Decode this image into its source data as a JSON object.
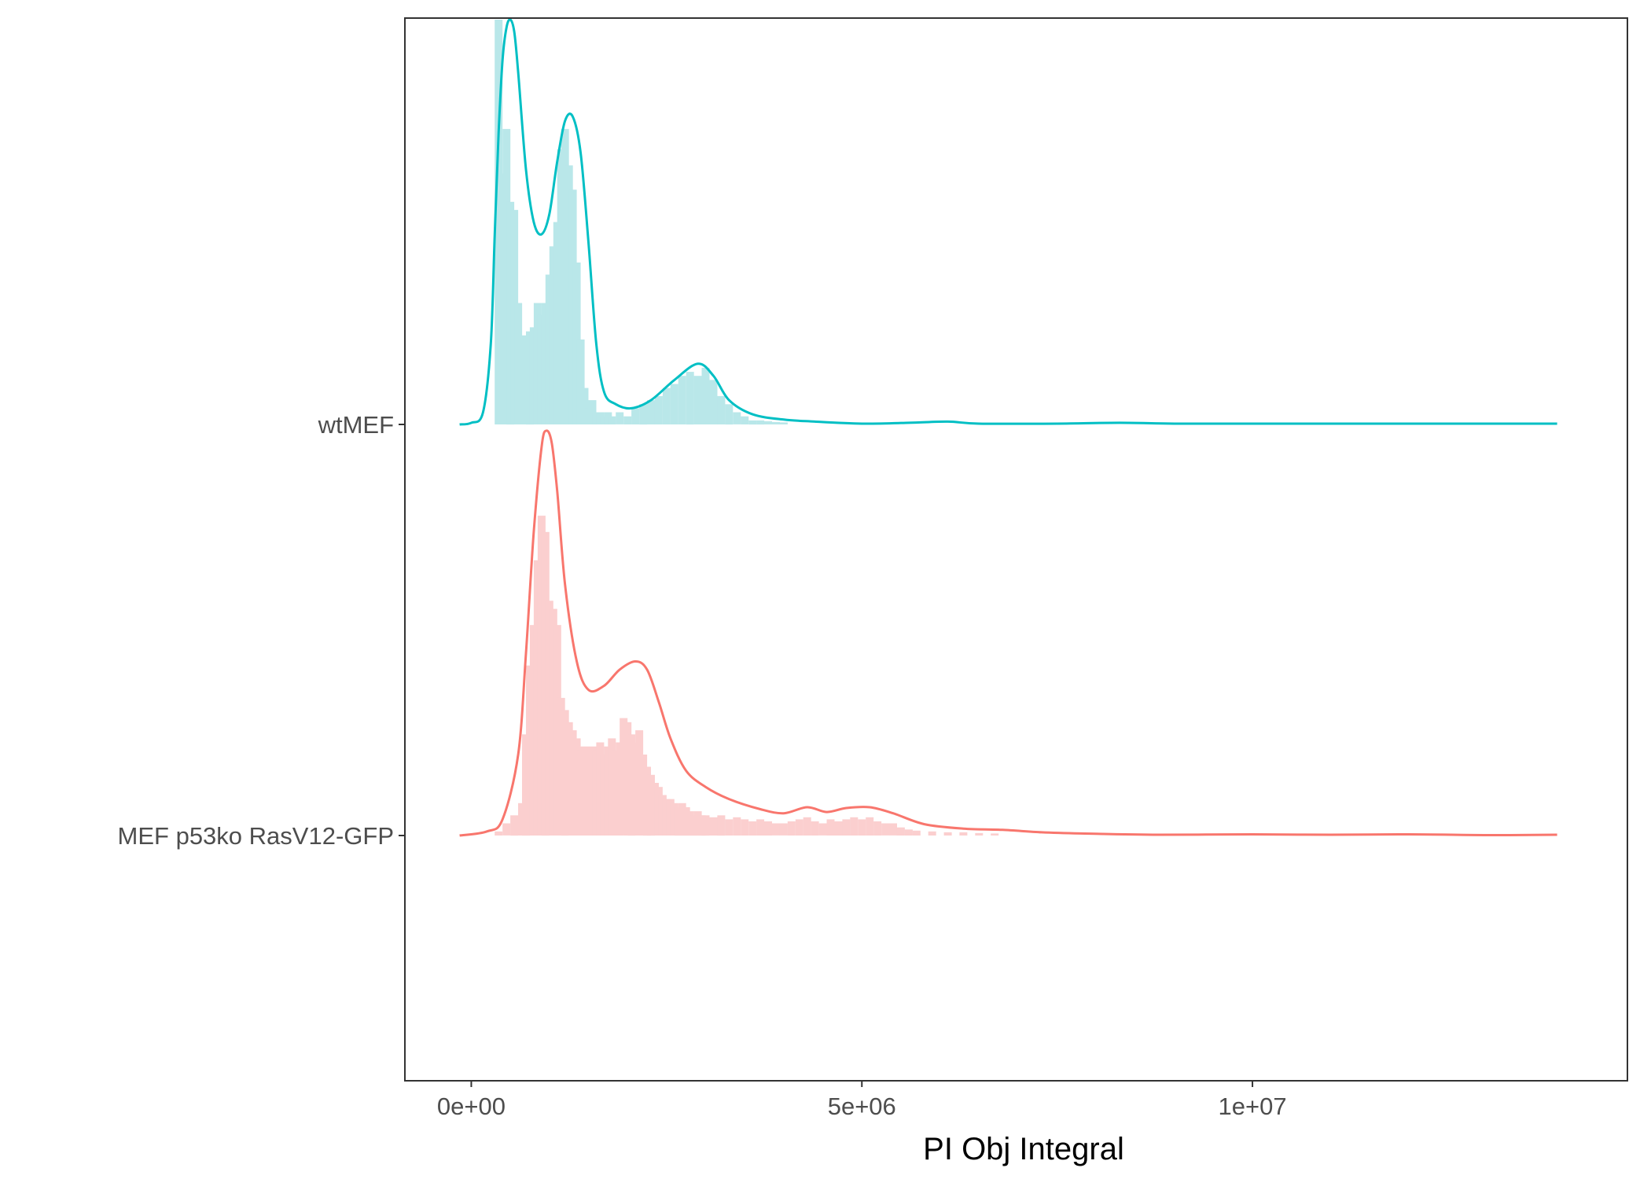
{
  "chart_data": {
    "type": "ridgeline",
    "title": "",
    "xlabel": "PI Obj Integral",
    "ylabel": "",
    "xlim": [
      -850000,
      14800000
    ],
    "x_ticks": [
      {
        "value": 0,
        "label": "0e+00"
      },
      {
        "value": 5000000,
        "label": "5e+06"
      },
      {
        "value": 10000000,
        "label": "1e+07"
      }
    ],
    "grid": false,
    "legend": "none",
    "series": [
      {
        "name": "MEF p53ko RasV12-GFP",
        "color": "#F8766D",
        "fill": "#FBCFCF",
        "density": [
          [
            -150000,
            0.0
          ],
          [
            200000,
            0.01
          ],
          [
            400000,
            0.04
          ],
          [
            600000,
            0.2
          ],
          [
            700000,
            0.45
          ],
          [
            800000,
            0.75
          ],
          [
            900000,
            0.96
          ],
          [
            960000,
            1.0
          ],
          [
            1030000,
            0.97
          ],
          [
            1100000,
            0.85
          ],
          [
            1200000,
            0.62
          ],
          [
            1350000,
            0.43
          ],
          [
            1500000,
            0.36
          ],
          [
            1700000,
            0.37
          ],
          [
            1900000,
            0.41
          ],
          [
            2100000,
            0.43
          ],
          [
            2250000,
            0.41
          ],
          [
            2400000,
            0.33
          ],
          [
            2550000,
            0.24
          ],
          [
            2750000,
            0.16
          ],
          [
            3000000,
            0.12
          ],
          [
            3300000,
            0.09
          ],
          [
            3700000,
            0.065
          ],
          [
            4000000,
            0.055
          ],
          [
            4300000,
            0.07
          ],
          [
            4550000,
            0.058
          ],
          [
            4800000,
            0.068
          ],
          [
            5100000,
            0.07
          ],
          [
            5400000,
            0.055
          ],
          [
            5800000,
            0.028
          ],
          [
            6300000,
            0.017
          ],
          [
            6800000,
            0.014
          ],
          [
            7300000,
            0.008
          ],
          [
            7800000,
            0.005
          ],
          [
            8800000,
            0.002
          ],
          [
            10000000,
            0.003
          ],
          [
            11000000,
            0.002
          ],
          [
            12000000,
            0.003
          ],
          [
            13000000,
            0.001
          ],
          [
            13900000,
            0.002
          ]
        ],
        "histogram": [
          [
            350000,
            0.01
          ],
          [
            450000,
            0.03
          ],
          [
            550000,
            0.05
          ],
          [
            650000,
            0.08
          ],
          [
            700000,
            0.25
          ],
          [
            750000,
            0.42
          ],
          [
            800000,
            0.52
          ],
          [
            850000,
            0.68
          ],
          [
            900000,
            0.79
          ],
          [
            950000,
            0.75
          ],
          [
            1000000,
            0.58
          ],
          [
            1050000,
            0.56
          ],
          [
            1100000,
            0.52
          ],
          [
            1150000,
            0.34
          ],
          [
            1200000,
            0.31
          ],
          [
            1250000,
            0.28
          ],
          [
            1300000,
            0.26
          ],
          [
            1350000,
            0.24
          ],
          [
            1400000,
            0.21
          ],
          [
            1450000,
            0.22
          ],
          [
            1500000,
            0.2
          ],
          [
            1550000,
            0.22
          ],
          [
            1600000,
            0.21
          ],
          [
            1650000,
            0.23
          ],
          [
            1700000,
            0.2
          ],
          [
            1750000,
            0.22
          ],
          [
            1800000,
            0.24
          ],
          [
            1850000,
            0.21
          ],
          [
            1900000,
            0.23
          ],
          [
            1950000,
            0.29
          ],
          [
            2000000,
            0.28
          ],
          [
            2050000,
            0.25
          ],
          [
            2100000,
            0.23
          ],
          [
            2150000,
            0.26
          ],
          [
            2200000,
            0.2
          ],
          [
            2250000,
            0.17
          ],
          [
            2300000,
            0.15
          ],
          [
            2350000,
            0.13
          ],
          [
            2400000,
            0.12
          ],
          [
            2450000,
            0.1
          ],
          [
            2500000,
            0.09
          ],
          [
            2550000,
            0.09
          ],
          [
            2600000,
            0.08
          ],
          [
            2650000,
            0.07
          ],
          [
            2700000,
            0.08
          ],
          [
            2750000,
            0.07
          ],
          [
            2800000,
            0.06
          ],
          [
            2850000,
            0.05
          ],
          [
            2900000,
            0.06
          ],
          [
            2950000,
            0.05
          ],
          [
            3000000,
            0.05
          ],
          [
            3100000,
            0.045
          ],
          [
            3200000,
            0.05
          ],
          [
            3300000,
            0.04
          ],
          [
            3400000,
            0.045
          ],
          [
            3500000,
            0.04
          ],
          [
            3600000,
            0.035
          ],
          [
            3700000,
            0.04
          ],
          [
            3800000,
            0.035
          ],
          [
            3900000,
            0.03
          ],
          [
            4000000,
            0.03
          ],
          [
            4100000,
            0.035
          ],
          [
            4200000,
            0.04
          ],
          [
            4300000,
            0.045
          ],
          [
            4400000,
            0.035
          ],
          [
            4500000,
            0.03
          ],
          [
            4600000,
            0.04
          ],
          [
            4700000,
            0.035
          ],
          [
            4800000,
            0.04
          ],
          [
            4900000,
            0.045
          ],
          [
            5000000,
            0.04
          ],
          [
            5100000,
            0.045
          ],
          [
            5200000,
            0.035
          ],
          [
            5300000,
            0.03
          ],
          [
            5400000,
            0.03
          ],
          [
            5500000,
            0.02
          ],
          [
            5600000,
            0.015
          ],
          [
            5700000,
            0.012
          ],
          [
            5900000,
            0.01
          ],
          [
            6100000,
            0.008
          ],
          [
            6300000,
            0.008
          ],
          [
            6500000,
            0.006
          ],
          [
            6700000,
            0.005
          ]
        ]
      },
      {
        "name": "wtMEF",
        "color": "#00BFC4",
        "fill": "#B9E7E9",
        "density": [
          [
            -150000,
            0.0
          ],
          [
            0,
            0.004
          ],
          [
            150000,
            0.03
          ],
          [
            250000,
            0.2
          ],
          [
            300000,
            0.47
          ],
          [
            350000,
            0.72
          ],
          [
            400000,
            0.9
          ],
          [
            450000,
            0.98
          ],
          [
            500000,
            1.0
          ],
          [
            550000,
            0.97
          ],
          [
            600000,
            0.87
          ],
          [
            700000,
            0.63
          ],
          [
            800000,
            0.5
          ],
          [
            900000,
            0.47
          ],
          [
            1000000,
            0.52
          ],
          [
            1100000,
            0.65
          ],
          [
            1200000,
            0.75
          ],
          [
            1300000,
            0.76
          ],
          [
            1400000,
            0.67
          ],
          [
            1500000,
            0.45
          ],
          [
            1600000,
            0.2
          ],
          [
            1700000,
            0.08
          ],
          [
            1850000,
            0.05
          ],
          [
            2050000,
            0.04
          ],
          [
            2300000,
            0.06
          ],
          [
            2600000,
            0.11
          ],
          [
            2900000,
            0.15
          ],
          [
            3100000,
            0.12
          ],
          [
            3300000,
            0.06
          ],
          [
            3600000,
            0.025
          ],
          [
            4000000,
            0.012
          ],
          [
            4400000,
            0.007
          ],
          [
            5000000,
            0.002
          ],
          [
            5600000,
            0.004
          ],
          [
            6100000,
            0.007
          ],
          [
            6500000,
            0.002
          ],
          [
            7500000,
            0.002
          ],
          [
            8300000,
            0.004
          ],
          [
            9000000,
            0.002
          ],
          [
            10000000,
            0.002
          ],
          [
            12000000,
            0.002
          ],
          [
            13900000,
            0.002
          ]
        ],
        "histogram": [
          [
            350000,
            1.0
          ],
          [
            400000,
            0.62
          ],
          [
            450000,
            0.73
          ],
          [
            500000,
            0.55
          ],
          [
            550000,
            0.53
          ],
          [
            600000,
            0.3
          ],
          [
            650000,
            0.22
          ],
          [
            700000,
            0.2
          ],
          [
            750000,
            0.23
          ],
          [
            800000,
            0.24
          ],
          [
            850000,
            0.3
          ],
          [
            900000,
            0.27
          ],
          [
            950000,
            0.3
          ],
          [
            1000000,
            0.37
          ],
          [
            1050000,
            0.44
          ],
          [
            1100000,
            0.5
          ],
          [
            1150000,
            0.68
          ],
          [
            1200000,
            0.73
          ],
          [
            1250000,
            0.64
          ],
          [
            1300000,
            0.58
          ],
          [
            1350000,
            0.4
          ],
          [
            1400000,
            0.21
          ],
          [
            1450000,
            0.09
          ],
          [
            1500000,
            0.04
          ],
          [
            1550000,
            0.06
          ],
          [
            1600000,
            0.03
          ],
          [
            1650000,
            0.03
          ],
          [
            1700000,
            0.02
          ],
          [
            1750000,
            0.03
          ],
          [
            1800000,
            0.02
          ],
          [
            1900000,
            0.03
          ],
          [
            2000000,
            0.02
          ],
          [
            2100000,
            0.04
          ],
          [
            2200000,
            0.05
          ],
          [
            2300000,
            0.06
          ],
          [
            2400000,
            0.07
          ],
          [
            2500000,
            0.09
          ],
          [
            2600000,
            0.1
          ],
          [
            2700000,
            0.12
          ],
          [
            2800000,
            0.13
          ],
          [
            2900000,
            0.12
          ],
          [
            3000000,
            0.14
          ],
          [
            3100000,
            0.11
          ],
          [
            3200000,
            0.07
          ],
          [
            3300000,
            0.05
          ],
          [
            3400000,
            0.03
          ],
          [
            3500000,
            0.02
          ],
          [
            3600000,
            0.01
          ],
          [
            3700000,
            0.01
          ],
          [
            3800000,
            0.008
          ],
          [
            3900000,
            0.006
          ],
          [
            4000000,
            0.005
          ]
        ]
      }
    ]
  }
}
